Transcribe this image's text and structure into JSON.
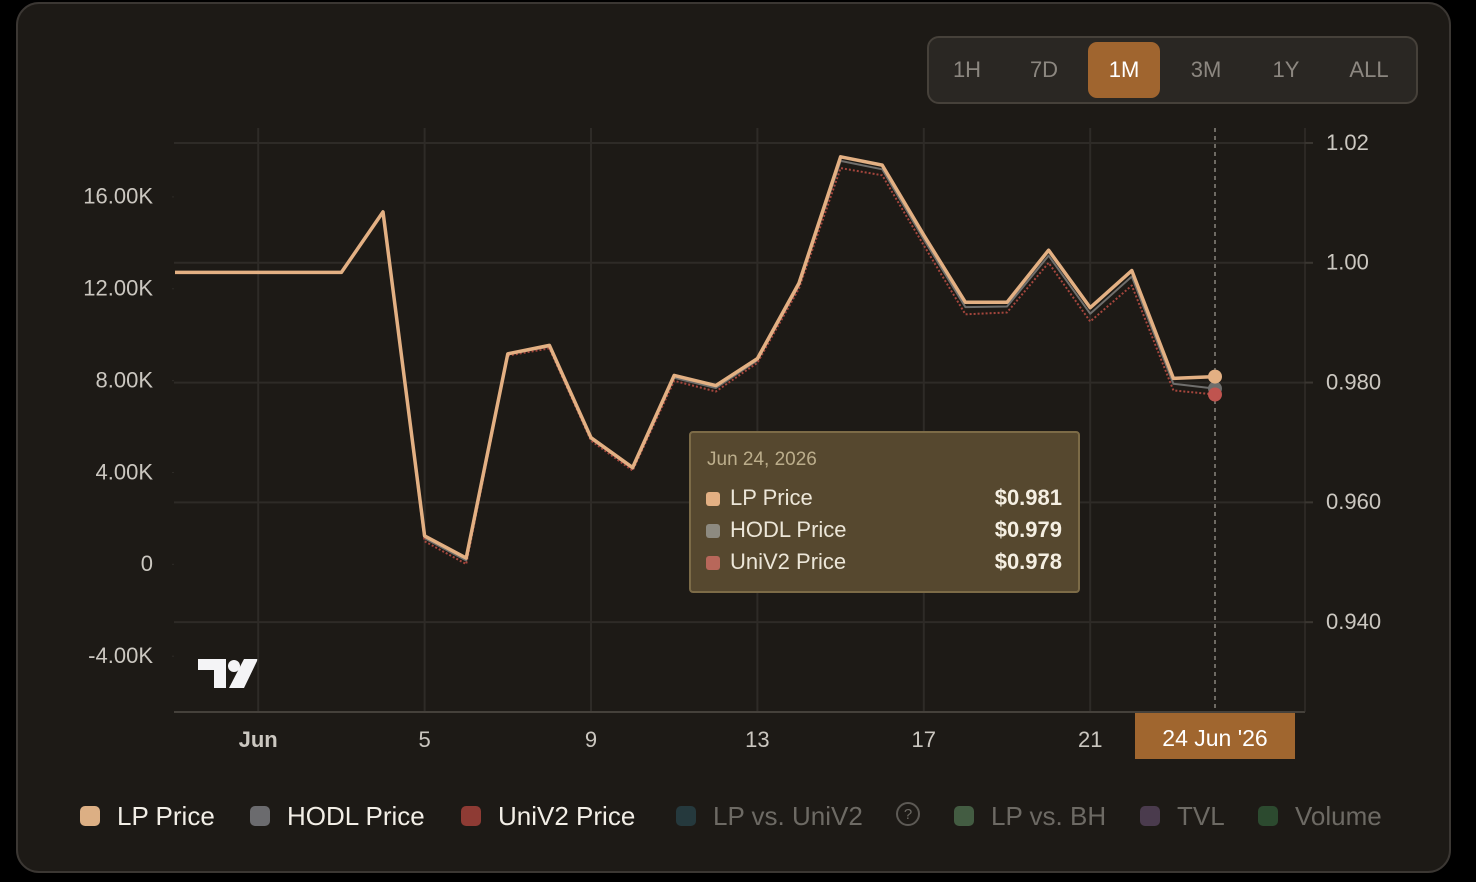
{
  "chart_data": {
    "type": "line",
    "ranges": [
      "1H",
      "7D",
      "1M",
      "3M",
      "1Y",
      "ALL"
    ],
    "active_range": "1M",
    "x": [
      "2026-05-30",
      "2026-05-31",
      "2026-06-01",
      "2026-06-02",
      "2026-06-03",
      "2026-06-04",
      "2026-06-05",
      "2026-06-06",
      "2026-06-07",
      "2026-06-08",
      "2026-06-09",
      "2026-06-10",
      "2026-06-11",
      "2026-06-12",
      "2026-06-13",
      "2026-06-14",
      "2026-06-15",
      "2026-06-16",
      "2026-06-17",
      "2026-06-18",
      "2026-06-19",
      "2026-06-20",
      "2026-06-21",
      "2026-06-22",
      "2026-06-23",
      "2026-06-24"
    ],
    "xticks": [
      {
        "value": "2026-06-01",
        "label": "Jun"
      },
      {
        "value": "2026-06-05",
        "label": "5"
      },
      {
        "value": "2026-06-09",
        "label": "9"
      },
      {
        "value": "2026-06-13",
        "label": "13"
      },
      {
        "value": "2026-06-17",
        "label": "17"
      },
      {
        "value": "2026-06-21",
        "label": "21"
      }
    ],
    "ylim": [
      -6430,
      19000
    ],
    "yticks": [
      {
        "value": 16000,
        "label": "16.00K"
      },
      {
        "value": 12000,
        "label": "12.00K"
      },
      {
        "value": 8000,
        "label": "8.00K"
      },
      {
        "value": 4000,
        "label": "4.00K"
      },
      0,
      {
        "value": -4000,
        "label": "-4.00K"
      }
    ],
    "y2lim": [
      0.925,
      1.0225
    ],
    "y2ticks": [
      1.02,
      {
        "value": 1,
        "label": "1.00"
      },
      {
        "value": 0.98,
        "label": "0.980"
      },
      {
        "value": 0.96,
        "label": "0.960"
      },
      {
        "value": 0.94,
        "label": "0.940"
      }
    ],
    "grid": true,
    "series": [
      {
        "name": "LP Price",
        "color": "#e3b083",
        "axis": "y2",
        "values": [
          0.9984,
          0.9984,
          0.9984,
          0.9984,
          0.9984,
          1.0085,
          0.9544,
          0.9507,
          0.9848,
          0.9862,
          0.9708,
          0.9658,
          0.9812,
          0.9795,
          0.984,
          0.9966,
          1.0177,
          1.0163,
          1.0046,
          0.9934,
          0.9934,
          1.0021,
          0.9925,
          0.9987,
          0.9807,
          0.981
        ],
        "value_labels": [
          null,
          null,
          null,
          null,
          null,
          null,
          null,
          null,
          null,
          null,
          null,
          null,
          null,
          null,
          null,
          null,
          null,
          null,
          null,
          null,
          null,
          null,
          null,
          null,
          null,
          "$0.981"
        ]
      },
      {
        "name": "HODL Price",
        "color": "#6f6e6c",
        "axis": "y2",
        "values": [
          0.9984,
          0.9984,
          0.9984,
          0.9984,
          0.9984,
          1.0085,
          0.954,
          0.9503,
          0.9847,
          0.986,
          0.9706,
          0.9656,
          0.9808,
          0.9791,
          0.9837,
          0.9962,
          1.017,
          1.0156,
          1.0039,
          0.9926,
          0.9927,
          1.0012,
          0.9915,
          0.9977,
          0.9798,
          0.979
        ],
        "value_labels": [
          null,
          null,
          null,
          null,
          null,
          null,
          null,
          null,
          null,
          null,
          null,
          null,
          null,
          null,
          null,
          null,
          null,
          null,
          null,
          null,
          null,
          null,
          null,
          null,
          null,
          "$0.979"
        ]
      },
      {
        "name": "UniV2 Price",
        "color": "#a5463d",
        "axis": "y2",
        "values": [
          0.9984,
          0.9984,
          0.9984,
          0.9984,
          0.9984,
          1.0085,
          0.9535,
          0.9497,
          0.9845,
          0.9857,
          0.9703,
          0.9653,
          0.9803,
          0.9785,
          0.9833,
          0.9957,
          1.0158,
          1.0146,
          1.0029,
          0.9914,
          0.9917,
          1.0,
          0.9902,
          0.9962,
          0.9787,
          0.978
        ],
        "value_labels": [
          null,
          null,
          null,
          null,
          null,
          null,
          null,
          null,
          null,
          null,
          null,
          null,
          null,
          null,
          null,
          null,
          null,
          null,
          null,
          null,
          null,
          null,
          null,
          null,
          null,
          "$0.978"
        ]
      }
    ],
    "hidden_series": [
      {
        "name": "LP vs. UniV2",
        "color": "#25393d"
      },
      {
        "name": "LP vs. BH",
        "color": "#435c42"
      },
      {
        "name": "TVL",
        "color": "#4a3b4d"
      },
      {
        "name": "Volume",
        "color": "#2c4a2f"
      }
    ],
    "tooltip_title": "Jun 24, 2026",
    "crosshair_label": "24 Jun '26"
  }
}
